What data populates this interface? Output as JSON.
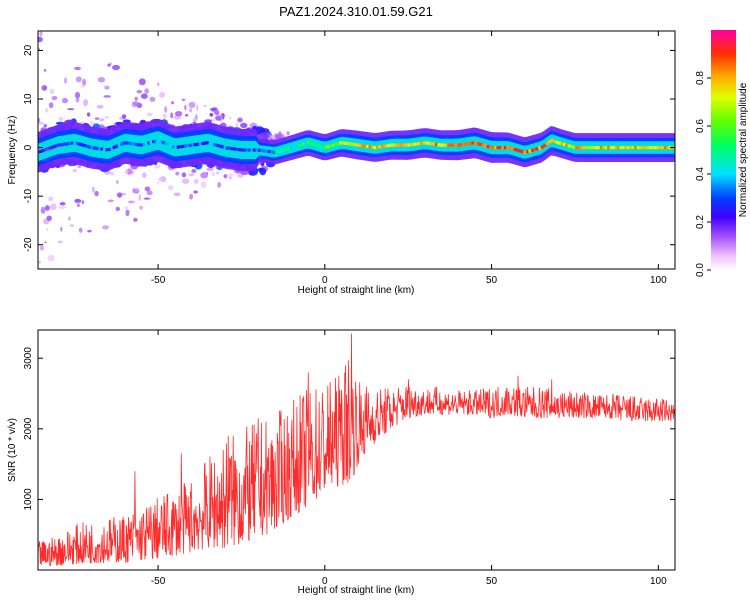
{
  "title": "PAZ1.2024.310.01.59.G21",
  "chart_data": [
    {
      "type": "heatmap",
      "xlabel": "Height of straight line (km)",
      "ylabel": "Frequency (Hz)",
      "xlim": [
        -86,
        105
      ],
      "ylim": [
        -25,
        24
      ],
      "xticks": [
        -50,
        0,
        50,
        100
      ],
      "yticks": [
        -20,
        -10,
        0,
        10,
        20
      ],
      "colorbar": {
        "label": "Normalized spectral amplitude",
        "ticks": [
          0.0,
          0.2,
          0.4,
          0.6,
          0.8
        ],
        "range": [
          0,
          1
        ]
      },
      "colorscale": [
        "#ffffff",
        "#c08cff",
        "#7f00ff",
        "#0000ff",
        "#00ffff",
        "#00ff00",
        "#ffff00",
        "#ff8000",
        "#ff0000"
      ],
      "ridge": {
        "x": [
          -86,
          -80,
          -75,
          -70,
          -65,
          -60,
          -55,
          -50,
          -45,
          -40,
          -35,
          -30,
          -25,
          -20,
          -15,
          -10,
          -5,
          0,
          5,
          10,
          15,
          20,
          25,
          30,
          35,
          40,
          45,
          50,
          55,
          60,
          65,
          68,
          70,
          75,
          80,
          85,
          90,
          95,
          100,
          105
        ],
        "freq": [
          -1,
          0.5,
          1,
          0,
          -0.5,
          1,
          0.5,
          1.5,
          0,
          0.5,
          1,
          0,
          -0.5,
          -0.5,
          -1,
          0,
          1,
          0,
          1,
          0.5,
          0,
          0.5,
          0.5,
          1,
          0.5,
          0.5,
          1,
          0,
          0,
          -1,
          0,
          1.5,
          1,
          0,
          0,
          0,
          0,
          0,
          0,
          0
        ],
        "amplitude": [
          0.25,
          0.25,
          0.3,
          0.3,
          0.3,
          0.3,
          0.35,
          0.35,
          0.3,
          0.3,
          0.3,
          0.3,
          0.3,
          0.3,
          0.4,
          0.45,
          0.5,
          0.55,
          0.65,
          0.75,
          0.75,
          0.75,
          0.8,
          0.8,
          0.8,
          0.85,
          0.9,
          0.9,
          0.85,
          0.85,
          0.85,
          0.8,
          0.75,
          0.75,
          0.75,
          0.75,
          0.75,
          0.75,
          0.75,
          0.75
        ]
      }
    },
    {
      "type": "line",
      "xlabel": "Height of straight line (km)",
      "ylabel": "SNR (10 * v/v)",
      "xlim": [
        -86,
        105
      ],
      "ylim": [
        0,
        3400
      ],
      "xticks": [
        -50,
        0,
        50,
        100
      ],
      "yticks": [
        1000,
        2000,
        3000
      ],
      "color": "#ff2a2a",
      "envelope": {
        "x": [
          -86,
          -80,
          -75,
          -70,
          -65,
          -60,
          -55,
          -50,
          -45,
          -40,
          -35,
          -30,
          -25,
          -20,
          -15,
          -10,
          -5,
          0,
          5,
          8,
          10,
          15,
          20,
          25,
          30,
          35,
          40,
          45,
          50,
          55,
          60,
          65,
          70,
          75,
          80,
          85,
          90,
          95,
          100,
          105
        ],
        "low": [
          50,
          60,
          80,
          90,
          100,
          100,
          130,
          150,
          200,
          250,
          300,
          300,
          350,
          450,
          550,
          750,
          900,
          1100,
          1200,
          1250,
          1500,
          1800,
          2000,
          2150,
          2200,
          2200,
          2200,
          2200,
          2150,
          2200,
          2150,
          2150,
          2150,
          2150,
          2150,
          2150,
          2100,
          2100,
          2100,
          2100
        ],
        "high": [
          400,
          500,
          650,
          700,
          750,
          800,
          900,
          1050,
          1150,
          1300,
          1600,
          1900,
          2000,
          2100,
          2200,
          2400,
          2600,
          2700,
          2800,
          3300,
          2700,
          2600,
          2600,
          2650,
          2600,
          2600,
          2550,
          2550,
          2600,
          2650,
          2600,
          2600,
          2550,
          2550,
          2500,
          2500,
          2500,
          2450,
          2450,
          2400
        ]
      },
      "spikes": [
        {
          "x": -57,
          "y": 1400
        },
        {
          "x": -43,
          "y": 1650
        },
        {
          "x": -29,
          "y": 1900
        },
        {
          "x": -20,
          "y": 2150
        },
        {
          "x": -5,
          "y": 2800
        },
        {
          "x": 5,
          "y": 2550
        },
        {
          "x": 8,
          "y": 3350
        },
        {
          "x": 25,
          "y": 2700
        },
        {
          "x": 58,
          "y": 2750
        },
        {
          "x": 68,
          "y": 2700
        }
      ]
    }
  ]
}
